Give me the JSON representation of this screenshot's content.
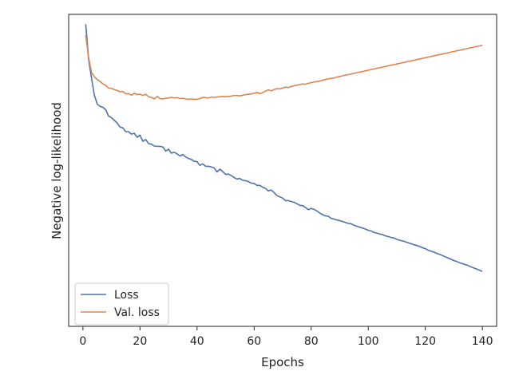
{
  "chart_data": {
    "type": "line",
    "title": "",
    "xlabel": "Epochs",
    "ylabel": "Negative log-likelihood",
    "xlim": [
      -5,
      145
    ],
    "ylim": [
      0,
      100
    ],
    "xticks": [
      0,
      20,
      40,
      60,
      80,
      100,
      120,
      140
    ],
    "yticks_shown": false,
    "grid": false,
    "legend_position": "lower-left",
    "series": [
      {
        "name": "Loss",
        "color": "#4c72b0",
        "x": [
          1,
          2,
          3,
          4,
          5,
          6,
          7,
          8,
          9,
          10,
          11,
          12,
          13,
          14,
          15,
          16,
          17,
          18,
          19,
          20,
          21,
          22,
          23,
          24,
          25,
          26,
          27,
          28,
          29,
          30,
          31,
          32,
          33,
          34,
          35,
          36,
          37,
          38,
          39,
          40,
          41,
          42,
          43,
          44,
          45,
          46,
          47,
          48,
          49,
          50,
          51,
          52,
          53,
          54,
          55,
          56,
          57,
          58,
          59,
          60,
          61,
          62,
          63,
          64,
          65,
          66,
          67,
          68,
          69,
          70,
          71,
          72,
          73,
          74,
          75,
          76,
          77,
          78,
          79,
          80,
          81,
          82,
          83,
          84,
          85,
          86,
          87,
          88,
          89,
          90,
          91,
          92,
          93,
          94,
          95,
          96,
          97,
          98,
          99,
          100,
          101,
          102,
          103,
          104,
          105,
          106,
          107,
          108,
          109,
          110,
          111,
          112,
          113,
          114,
          115,
          116,
          117,
          118,
          119,
          120,
          121,
          122,
          123,
          124,
          125,
          126,
          127,
          128,
          129,
          130,
          131,
          132,
          133,
          134,
          135,
          136,
          137,
          138,
          139,
          140
        ],
        "values": [
          96.8,
          85.5,
          79.6,
          74.1,
          71.3,
          70.5,
          70.2,
          69.4,
          67.4,
          66.9,
          66.0,
          65.2,
          63.9,
          63.6,
          62.4,
          62.4,
          61.6,
          61.9,
          60.6,
          61.3,
          59.3,
          59.9,
          58.6,
          58.4,
          57.8,
          57.7,
          57.7,
          57.5,
          56.2,
          56.8,
          55.5,
          55.8,
          55.3,
          54.6,
          55.1,
          54.3,
          53.8,
          53.5,
          52.9,
          52.8,
          51.6,
          52.1,
          51.3,
          51.3,
          51.1,
          50.8,
          49.5,
          50.4,
          49.6,
          48.7,
          48.8,
          48.3,
          47.7,
          47.2,
          47.4,
          46.8,
          46.7,
          46.4,
          45.9,
          45.8,
          45.2,
          45.2,
          44.6,
          44.2,
          43.4,
          43.7,
          42.9,
          41.9,
          41.5,
          41.1,
          40.3,
          40.3,
          40.0,
          39.8,
          39.3,
          38.8,
          38.7,
          38.1,
          37.4,
          37.8,
          37.5,
          37.0,
          36.3,
          35.8,
          35.4,
          35.3,
          34.6,
          34.4,
          34.1,
          33.9,
          33.6,
          33.3,
          33.0,
          32.9,
          32.4,
          32.1,
          31.8,
          31.5,
          31.2,
          30.8,
          30.6,
          30.1,
          29.9,
          29.6,
          29.4,
          29.0,
          28.8,
          28.5,
          28.3,
          27.9,
          27.6,
          27.4,
          27.1,
          26.8,
          26.5,
          26.2,
          25.9,
          25.6,
          25.2,
          24.9,
          24.4,
          24.1,
          23.8,
          23.4,
          23.1,
          22.7,
          22.3,
          21.9,
          21.5,
          21.1,
          20.8,
          20.4,
          20.1,
          19.8,
          19.5,
          19.1,
          18.7,
          18.4,
          18.0,
          17.6
        ],
        "note_values": ""
      },
      {
        "name": "Val. loss",
        "color": "#dd8452",
        "x": [
          1,
          2,
          3,
          4,
          5,
          6,
          7,
          8,
          9,
          10,
          11,
          12,
          13,
          14,
          15,
          16,
          17,
          18,
          19,
          20,
          21,
          22,
          23,
          24,
          25,
          26,
          27,
          28,
          29,
          30,
          31,
          32,
          33,
          34,
          35,
          36,
          37,
          38,
          39,
          40,
          41,
          42,
          43,
          44,
          45,
          46,
          47,
          48,
          49,
          50,
          51,
          52,
          53,
          54,
          55,
          56,
          57,
          58,
          59,
          60,
          61,
          62,
          63,
          64,
          65,
          66,
          67,
          68,
          69,
          70,
          71,
          72,
          73,
          74,
          75,
          76,
          77,
          78,
          79,
          80,
          81,
          82,
          83,
          84,
          85,
          86,
          87,
          88,
          89,
          90,
          91,
          92,
          93,
          94,
          95,
          96,
          97,
          98,
          99,
          100,
          101,
          102,
          103,
          104,
          105,
          106,
          107,
          108,
          109,
          110,
          111,
          112,
          113,
          114,
          115,
          116,
          117,
          118,
          119,
          120,
          121,
          122,
          123,
          124,
          125,
          126,
          127,
          128,
          129,
          130,
          131,
          132,
          133,
          134,
          135,
          136,
          137,
          138,
          139,
          140
        ],
        "values": [
          93.3,
          86.1,
          81.4,
          80.0,
          79.1,
          78.5,
          77.7,
          77.2,
          76.4,
          76.3,
          75.9,
          75.6,
          75.2,
          75.3,
          74.5,
          74.6,
          74.1,
          74.7,
          74.3,
          74.4,
          74.0,
          74.4,
          73.6,
          73.4,
          72.9,
          73.7,
          73.0,
          72.9,
          73.1,
          73.2,
          73.4,
          73.2,
          73.3,
          73.0,
          73.1,
          72.9,
          72.8,
          72.9,
          72.8,
          72.8,
          73.0,
          73.4,
          73.3,
          73.2,
          73.5,
          73.4,
          73.5,
          73.6,
          73.7,
          73.6,
          73.7,
          73.8,
          74.0,
          74.0,
          73.9,
          74.1,
          74.3,
          74.4,
          74.5,
          74.7,
          75.0,
          74.6,
          74.9,
          75.4,
          75.8,
          75.5,
          75.9,
          76.2,
          76.1,
          76.4,
          76.7,
          76.5,
          76.9,
          77.1,
          77.3,
          77.5,
          77.7,
          77.6,
          77.9,
          78.1,
          78.3,
          78.5,
          78.6,
          78.9,
          79.1,
          79.3,
          79.5,
          79.6,
          79.9,
          80.1,
          80.3,
          80.5,
          80.7,
          80.9,
          81.1,
          81.3,
          81.5,
          81.7,
          81.9,
          82.1,
          82.3,
          82.5,
          82.7,
          82.9,
          83.1,
          83.3,
          83.5,
          83.7,
          83.9,
          84.1,
          84.3,
          84.5,
          84.7,
          84.9,
          85.1,
          85.3,
          85.5,
          85.7,
          85.9,
          86.1,
          86.3,
          86.5,
          86.7,
          86.9,
          87.1,
          87.3,
          87.5,
          87.7,
          87.9,
          88.1,
          88.3,
          88.5,
          88.7,
          88.9,
          89.1,
          89.3,
          89.5,
          89.7,
          89.9,
          90.1
        ],
        "note_values": ""
      }
    ]
  }
}
